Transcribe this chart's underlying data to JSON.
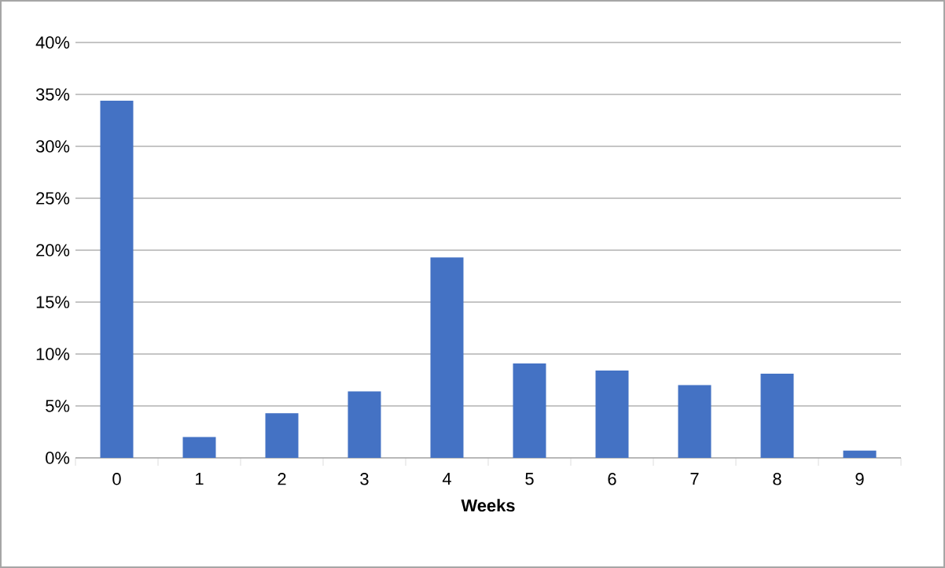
{
  "chart_data": {
    "type": "bar",
    "xlabel": "Weeks",
    "categories": [
      "0",
      "1",
      "2",
      "3",
      "4",
      "5",
      "6",
      "7",
      "8",
      "9"
    ],
    "values": [
      34.4,
      2.0,
      4.3,
      6.4,
      19.3,
      9.1,
      8.4,
      7.0,
      8.1,
      0.7
    ],
    "color": "#4472c4",
    "ylim": [
      0,
      40
    ],
    "yticks": [
      {
        "value": 0,
        "label": "0%"
      },
      {
        "value": 5,
        "label": "5%"
      },
      {
        "value": 10,
        "label": "10%"
      },
      {
        "value": 15,
        "label": "15%"
      },
      {
        "value": 20,
        "label": "20%"
      },
      {
        "value": 25,
        "label": "25%"
      },
      {
        "value": 30,
        "label": "30%"
      },
      {
        "value": 35,
        "label": "35%"
      },
      {
        "value": 40,
        "label": "40%"
      }
    ],
    "grid": "y"
  }
}
